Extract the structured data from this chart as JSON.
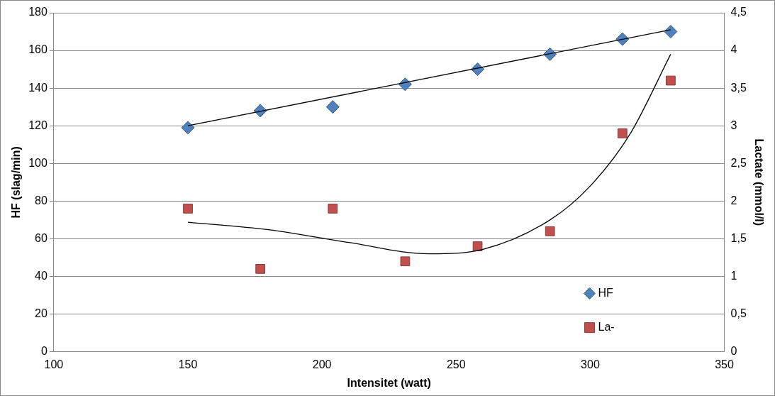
{
  "chart_data": {
    "type": "scatter",
    "xlabel": "Intensitet (watt)",
    "ylabel": "HF (slag/min)",
    "y2label": "Lactate (mmol/l)",
    "xlim": [
      100,
      350
    ],
    "xticks": [
      100,
      150,
      200,
      250,
      300,
      350
    ],
    "ylim": [
      0,
      180
    ],
    "yticks": [
      0,
      20,
      40,
      60,
      80,
      100,
      120,
      140,
      160,
      180
    ],
    "y2lim": [
      0,
      4.5
    ],
    "y2ticks": [
      0,
      {
        "value": 0.5,
        "label": "0,5"
      },
      1,
      {
        "value": 1.5,
        "label": "1,5"
      },
      2,
      {
        "value": 2.5,
        "label": "2,5"
      },
      3,
      {
        "value": 3.5,
        "label": "3,5"
      },
      4,
      {
        "value": 4.5,
        "label": "4,5"
      }
    ],
    "grid": "y",
    "legend": "bottom right",
    "series": [
      {
        "name": "HF",
        "color": "#4f81bd",
        "marker": "diamond",
        "x": [
          150,
          177,
          204,
          231,
          258,
          285,
          312,
          330
        ],
        "values": [
          119,
          128,
          130,
          142,
          150,
          158,
          166,
          170
        ]
      },
      {
        "name": "La-",
        "color": "#c0504d",
        "marker": "square",
        "axis": "y2",
        "x": [
          150,
          177,
          204,
          231,
          258,
          285,
          312,
          330
        ],
        "values": [
          1.9,
          1.1,
          1.9,
          1.2,
          1.4,
          1.6,
          2.9,
          3.6
        ]
      },
      {
        "type": "line",
        "color": "#000000",
        "marker": "none",
        "x": [
          150,
          330
        ],
        "values": [
          120,
          171
        ]
      },
      {
        "type": "line",
        "color": "#000000",
        "marker": "none",
        "axis": "y2",
        "x": [
          150,
          180,
          210,
          240,
          260,
          285,
          300,
          315,
          330
        ],
        "values": [
          1.72,
          1.62,
          1.45,
          1.3,
          1.36,
          1.75,
          2.2,
          2.9,
          3.95
        ]
      }
    ]
  }
}
